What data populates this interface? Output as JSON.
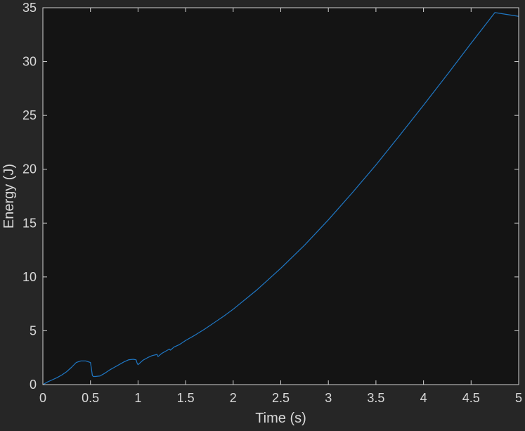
{
  "colors": {
    "figure_bg": "#262626",
    "axes_bg": "#141414",
    "axis_line": "#d0d0d0",
    "text": "#d9d9d9",
    "series_line": "#1f77c4"
  },
  "chart_data": {
    "type": "line",
    "title": "",
    "xlabel": "Time (s)",
    "ylabel": "Energy (J)",
    "xlim": [
      0,
      5
    ],
    "ylim": [
      0,
      35
    ],
    "xticks": [
      0,
      0.5,
      1,
      1.5,
      2,
      2.5,
      3,
      3.5,
      4,
      4.5,
      5
    ],
    "xtick_labels": [
      "0",
      "0.5",
      "1",
      "1.5",
      "2",
      "2.5",
      "3",
      "3.5",
      "4",
      "4.5",
      "5"
    ],
    "yticks": [
      0,
      5,
      10,
      15,
      20,
      25,
      30,
      35
    ],
    "ytick_labels": [
      "0",
      "5",
      "10",
      "15",
      "20",
      "25",
      "30",
      "35"
    ],
    "grid": false,
    "legend": "none",
    "series": [
      {
        "color": "#1f77c4",
        "x": [
          0,
          0.05,
          0.1,
          0.15,
          0.2,
          0.25,
          0.3,
          0.35,
          0.4,
          0.45,
          0.5,
          0.51,
          0.52,
          0.53,
          0.55,
          0.6,
          0.65,
          0.7,
          0.75,
          0.8,
          0.85,
          0.9,
          0.95,
          0.98,
          0.99,
          1.0,
          1.05,
          1.1,
          1.15,
          1.2,
          1.21,
          1.25,
          1.3,
          1.33,
          1.34,
          1.38,
          1.42,
          1.45,
          1.5,
          1.6,
          1.7,
          1.8,
          1.9,
          2.0,
          2.25,
          2.5,
          2.75,
          3.0,
          3.25,
          3.5,
          3.75,
          4.0,
          4.25,
          4.5,
          4.75,
          5.0
        ],
        "y": [
          0,
          0.25,
          0.45,
          0.65,
          0.9,
          1.2,
          1.6,
          2.05,
          2.2,
          2.2,
          2.05,
          1.5,
          0.85,
          0.75,
          0.75,
          0.8,
          1.05,
          1.35,
          1.6,
          1.85,
          2.1,
          2.3,
          2.35,
          2.3,
          2.0,
          1.85,
          2.25,
          2.5,
          2.7,
          2.8,
          2.6,
          2.9,
          3.15,
          3.3,
          3.2,
          3.5,
          3.65,
          3.8,
          4.1,
          4.6,
          5.15,
          5.75,
          6.35,
          7.0,
          8.8,
          10.8,
          12.95,
          15.3,
          17.8,
          20.4,
          23.15,
          25.95,
          28.8,
          31.7,
          34.55,
          34.2
        ]
      }
    ]
  }
}
